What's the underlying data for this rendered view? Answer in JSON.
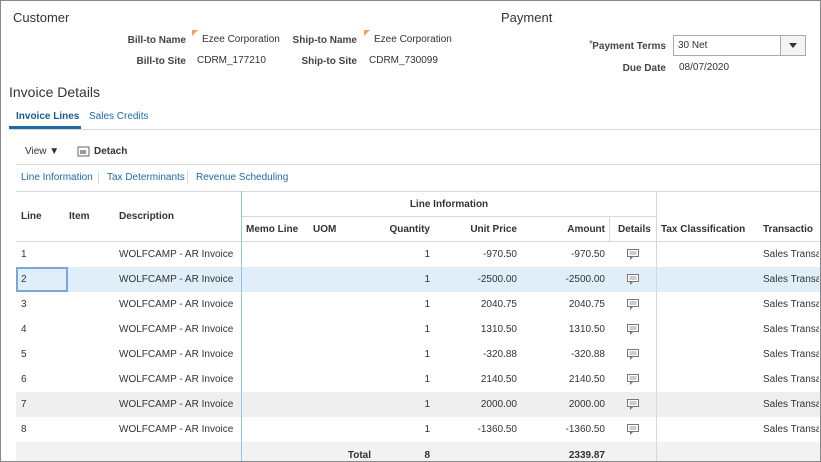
{
  "customer": {
    "title": "Customer",
    "bill_to_name_label": "Bill-to Name",
    "bill_to_name": "Ezee Corporation",
    "ship_to_name_label": "Ship-to Name",
    "ship_to_name": "Ezee Corporation",
    "bill_to_site_label": "Bill-to Site",
    "bill_to_site": "CDRM_177210",
    "ship_to_site_label": "Ship-to Site",
    "ship_to_site": "CDRM_730099"
  },
  "payment": {
    "title": "Payment",
    "required_mark": "*",
    "payment_terms_label": "Payment Terms",
    "payment_terms": "30 Net",
    "due_date_label": "Due Date",
    "due_date": "08/07/2020"
  },
  "invoice_details": {
    "title": "Invoice Details",
    "tabs": [
      "Invoice Lines",
      "Sales Credits"
    ],
    "toolbar": {
      "view": "View",
      "detach": "Detach"
    },
    "subtabs": [
      "Line Information",
      "Tax Determinants",
      "Revenue Scheduling"
    ],
    "table": {
      "group_header": "Line Information",
      "columns": [
        "Line",
        "Item",
        "Description",
        "Memo Line",
        "UOM",
        "Quantity",
        "Unit Price",
        "Amount",
        "Details",
        "Tax Classification",
        "Transactio"
      ],
      "rows": [
        {
          "line": "1",
          "description": "WOLFCAMP - AR Invoice",
          "quantity": "1",
          "unit_price": "-970.50",
          "amount": "-970.50",
          "transaction": "Sales Transa"
        },
        {
          "line": "2",
          "description": "WOLFCAMP - AR Invoice",
          "quantity": "1",
          "unit_price": "-2500.00",
          "amount": "-2500.00",
          "transaction": "Sales Transa"
        },
        {
          "line": "3",
          "description": "WOLFCAMP - AR Invoice",
          "quantity": "1",
          "unit_price": "2040.75",
          "amount": "2040.75",
          "transaction": "Sales Transa"
        },
        {
          "line": "4",
          "description": "WOLFCAMP - AR Invoice",
          "quantity": "1",
          "unit_price": "1310.50",
          "amount": "1310.50",
          "transaction": "Sales Transa"
        },
        {
          "line": "5",
          "description": "WOLFCAMP - AR Invoice",
          "quantity": "1",
          "unit_price": "-320.88",
          "amount": "-320.88",
          "transaction": "Sales Transa"
        },
        {
          "line": "6",
          "description": "WOLFCAMP - AR Invoice",
          "quantity": "1",
          "unit_price": "2140.50",
          "amount": "2140.50",
          "transaction": "Sales Transa"
        },
        {
          "line": "7",
          "description": "WOLFCAMP - AR Invoice",
          "quantity": "1",
          "unit_price": "2000.00",
          "amount": "2000.00",
          "transaction": "Sales Transa"
        },
        {
          "line": "8",
          "description": "WOLFCAMP - AR Invoice",
          "quantity": "1",
          "unit_price": "-1360.50",
          "amount": "-1360.50",
          "transaction": "Sales Transa"
        }
      ],
      "total": {
        "label": "Total",
        "quantity": "8",
        "amount": "2339.87"
      }
    }
  }
}
